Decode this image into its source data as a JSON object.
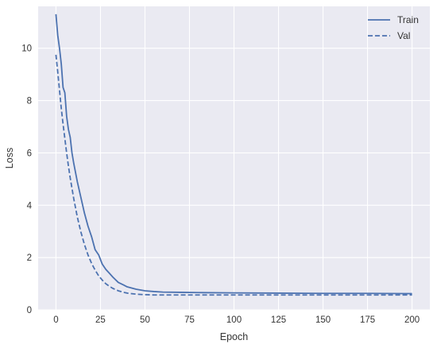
{
  "chart_data": {
    "type": "line",
    "xlabel": "Epoch",
    "ylabel": "Loss",
    "xlim": [
      -10,
      210
    ],
    "ylim": [
      0,
      11.6
    ],
    "xticks": [
      0,
      25,
      50,
      75,
      100,
      125,
      150,
      175,
      200
    ],
    "yticks": [
      0,
      2,
      4,
      6,
      8,
      10
    ],
    "grid": true,
    "legend": "top-right",
    "colors": {
      "plot_bg": "#eaeaf2",
      "grid": "#ffffff",
      "series": "#4c72b0"
    },
    "series": [
      {
        "name": "Train",
        "style": "solid",
        "x": [
          0,
          1,
          2,
          3,
          4,
          5,
          6,
          7,
          8,
          9,
          10,
          12,
          14,
          16,
          18,
          20,
          22,
          24,
          26,
          28,
          30,
          32,
          35,
          38,
          40,
          45,
          50,
          55,
          60,
          70,
          80,
          100,
          125,
          150,
          175,
          200
        ],
        "y": [
          11.3,
          10.5,
          10.0,
          9.4,
          8.5,
          8.3,
          7.4,
          6.9,
          6.6,
          6.0,
          5.6,
          4.9,
          4.3,
          3.7,
          3.2,
          2.8,
          2.3,
          2.1,
          1.75,
          1.55,
          1.4,
          1.25,
          1.05,
          0.95,
          0.88,
          0.79,
          0.73,
          0.7,
          0.68,
          0.67,
          0.66,
          0.65,
          0.64,
          0.63,
          0.63,
          0.62
        ]
      },
      {
        "name": "Val",
        "style": "dashed",
        "x": [
          0,
          1,
          2,
          3,
          4,
          5,
          6,
          7,
          8,
          9,
          10,
          12,
          14,
          16,
          18,
          20,
          22,
          24,
          26,
          28,
          30,
          32,
          35,
          38,
          40,
          45,
          50,
          55,
          60,
          70,
          80,
          100,
          125,
          150,
          175,
          200
        ],
        "y": [
          9.75,
          9.1,
          8.4,
          7.7,
          7.1,
          6.55,
          6.0,
          5.5,
          5.05,
          4.65,
          4.25,
          3.55,
          2.98,
          2.5,
          2.1,
          1.78,
          1.52,
          1.3,
          1.14,
          1.0,
          0.9,
          0.82,
          0.73,
          0.67,
          0.64,
          0.6,
          0.58,
          0.57,
          0.57,
          0.57,
          0.57,
          0.57,
          0.57,
          0.57,
          0.57,
          0.57
        ]
      }
    ]
  }
}
